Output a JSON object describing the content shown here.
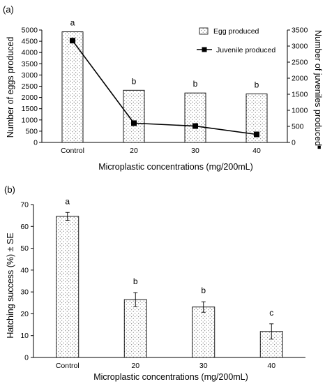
{
  "chart_data": [
    {
      "panel_label": "(a)",
      "type": "bar",
      "categories": [
        "Control",
        "20",
        "30",
        "40"
      ],
      "xlabel": "Microplastic concentrations (mg/200mL)",
      "ylabel": "Number of eggs produced",
      "y2label": "Number of juveniles produced",
      "y2label_marker": "■",
      "ylim": [
        0,
        5000
      ],
      "yticks": [
        0,
        500,
        1000,
        1500,
        2000,
        2500,
        3000,
        3500,
        4000,
        4500,
        5000
      ],
      "y2lim": [
        0,
        3500
      ],
      "y2ticks": [
        0,
        500,
        1000,
        1500,
        2000,
        2500,
        3000,
        3500
      ],
      "legend_position": "top-right",
      "series": [
        {
          "name": "Egg produced",
          "type": "bar",
          "axis": "left",
          "values": [
            4920,
            2320,
            2200,
            2160
          ]
        },
        {
          "name": "Juvenile produced",
          "type": "line",
          "axis": "right",
          "values": [
            3170,
            600,
            510,
            250
          ]
        }
      ],
      "significance_letters": [
        "a",
        "b",
        "b",
        "b"
      ]
    },
    {
      "panel_label": "(b)",
      "type": "bar",
      "categories": [
        "Control",
        "20",
        "30",
        "40"
      ],
      "xlabel": "Microplastic concentrations (mg/200mL)",
      "ylabel": "Hatching success (%) ± SE",
      "ylim": [
        0,
        70
      ],
      "yticks": [
        0,
        10,
        20,
        30,
        40,
        50,
        60,
        70
      ],
      "series": [
        {
          "values": [
            64.6,
            26.5,
            23.1,
            11.9
          ],
          "error": [
            1.8,
            3.2,
            2.4,
            3.5
          ]
        }
      ],
      "significance_letters": [
        "a",
        "b",
        "b",
        "c"
      ]
    }
  ]
}
